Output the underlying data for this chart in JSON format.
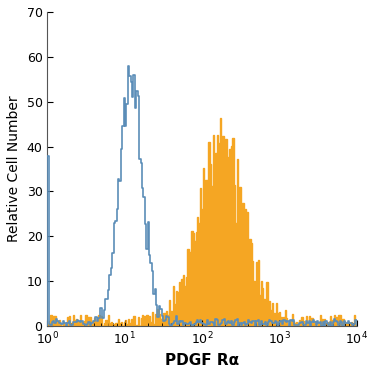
{
  "title": "",
  "xlabel": "PDGF Rα",
  "ylabel": "Relative Cell Number",
  "xlim": [
    1.0,
    10000.0
  ],
  "ylim": [
    0,
    70
  ],
  "yticks": [
    0,
    10,
    20,
    30,
    40,
    50,
    60,
    70
  ],
  "background_color": "#ffffff",
  "blue_color": "#5b8db8",
  "orange_color": "#f5a623",
  "xlabel_fontsize": 11,
  "ylabel_fontsize": 10,
  "tick_fontsize": 9,
  "blue_peak_y": 57,
  "orange_peak_y": 44,
  "blue_start_y": 38
}
